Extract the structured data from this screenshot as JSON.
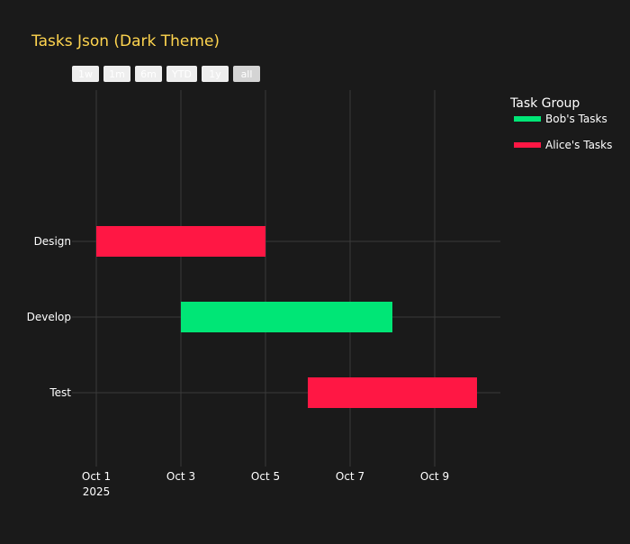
{
  "chart_data": {
    "type": "gantt",
    "title": "Tasks Json (Dark Theme)",
    "xlabel": "",
    "ylabel": "",
    "x_range": [
      "2025-10-01",
      "2025-10-10"
    ],
    "x_ticks": [
      {
        "date": "2025-10-01",
        "label": "Oct 1",
        "sublabel": "2025"
      },
      {
        "date": "2025-10-03",
        "label": "Oct 3",
        "sublabel": ""
      },
      {
        "date": "2025-10-05",
        "label": "Oct 5",
        "sublabel": ""
      },
      {
        "date": "2025-10-07",
        "label": "Oct 7",
        "sublabel": ""
      },
      {
        "date": "2025-10-09",
        "label": "Oct 9",
        "sublabel": ""
      }
    ],
    "categories": [
      "Design",
      "Develop",
      "Test"
    ],
    "tasks": [
      {
        "task": "Design",
        "start": "2025-10-01",
        "finish": "2025-10-05",
        "group": "Alice's Tasks"
      },
      {
        "task": "Develop",
        "start": "2025-10-03",
        "finish": "2025-10-08",
        "group": "Bob's Tasks"
      },
      {
        "task": "Test",
        "start": "2025-10-06",
        "finish": "2025-10-10",
        "group": "Alice's Tasks"
      }
    ],
    "legend": {
      "title": "Task Group",
      "placement": "top-right",
      "entries": [
        {
          "name": "Bob's Tasks",
          "color": "#00e676"
        },
        {
          "name": "Alice's Tasks",
          "color": "#ff1744"
        }
      ]
    },
    "range_selector": {
      "buttons": [
        "1w",
        "1m",
        "6m",
        "YTD",
        "1y",
        "all"
      ],
      "active": "all"
    },
    "grid": true,
    "colors": {
      "background": "#1a1a1a",
      "title": "#ffd54f",
      "text": "#ffffff",
      "grid": "#3a3a3a"
    }
  }
}
